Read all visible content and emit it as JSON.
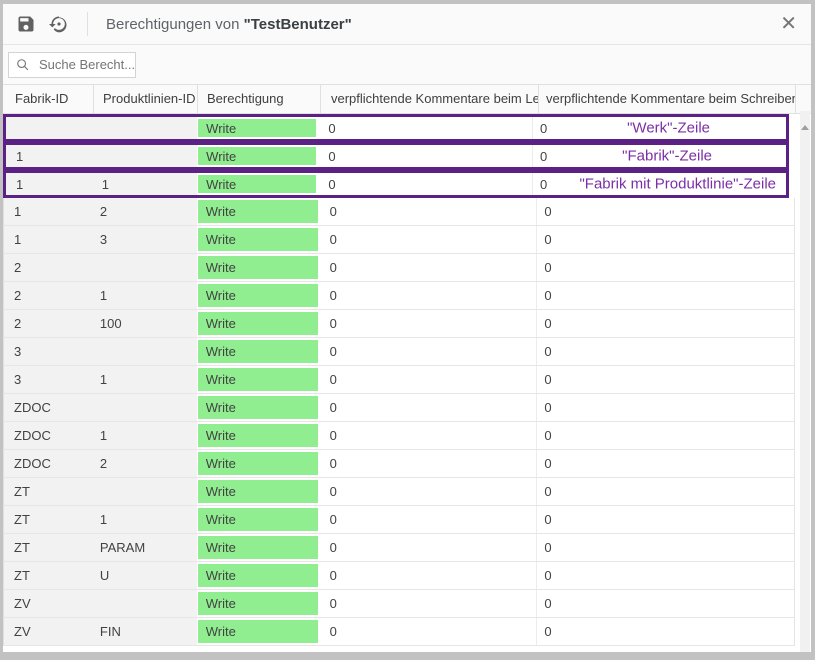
{
  "titlebar": {
    "title_prefix": "Berechtigungen von ",
    "title_user": "\"TestBenutzer\"",
    "close_label": "✕",
    "icons": [
      "save-icon",
      "history-restore-icon",
      "close-icon"
    ]
  },
  "toolbar": {
    "search_placeholder": "Suche Berecht...",
    "search_value": "",
    "icons": [
      "search-icon"
    ]
  },
  "colors": {
    "permission_green": "#90ee90",
    "highlight_purple": "#5c2184",
    "annotation_purple": "#7b2fa6",
    "row_alt_gray": "#f2f2f2"
  },
  "table": {
    "columns": [
      "Fabrik-ID",
      "Produktlinien-ID",
      "Berechtigung",
      "verpflichtende Kommentare beim Lesen",
      "verpflichtende Kommentare beim Schreiben"
    ],
    "rows": [
      {
        "fabrik_id": "",
        "produktlinien_id": "",
        "berechtigung": "Write",
        "kommentare_lesen": "0",
        "kommentare_schreiben": "0",
        "highlighted": true,
        "annotation": "\"Werk\"-Zeile"
      },
      {
        "fabrik_id": "1",
        "produktlinien_id": "",
        "berechtigung": "Write",
        "kommentare_lesen": "0",
        "kommentare_schreiben": "0",
        "highlighted": true,
        "annotation": "\"Fabrik\"-Zeile"
      },
      {
        "fabrik_id": "1",
        "produktlinien_id": "1",
        "berechtigung": "Write",
        "kommentare_lesen": "0",
        "kommentare_schreiben": "0",
        "highlighted": true,
        "annotation": "\"Fabrik mit Produktlinie\"-Zeile"
      },
      {
        "fabrik_id": "1",
        "produktlinien_id": "2",
        "berechtigung": "Write",
        "kommentare_lesen": "0",
        "kommentare_schreiben": "0",
        "highlighted": false,
        "annotation": ""
      },
      {
        "fabrik_id": "1",
        "produktlinien_id": "3",
        "berechtigung": "Write",
        "kommentare_lesen": "0",
        "kommentare_schreiben": "0",
        "highlighted": false,
        "annotation": ""
      },
      {
        "fabrik_id": "2",
        "produktlinien_id": "",
        "berechtigung": "Write",
        "kommentare_lesen": "0",
        "kommentare_schreiben": "0",
        "highlighted": false,
        "annotation": ""
      },
      {
        "fabrik_id": "2",
        "produktlinien_id": "1",
        "berechtigung": "Write",
        "kommentare_lesen": "0",
        "kommentare_schreiben": "0",
        "highlighted": false,
        "annotation": ""
      },
      {
        "fabrik_id": "2",
        "produktlinien_id": "100",
        "berechtigung": "Write",
        "kommentare_lesen": "0",
        "kommentare_schreiben": "0",
        "highlighted": false,
        "annotation": ""
      },
      {
        "fabrik_id": "3",
        "produktlinien_id": "",
        "berechtigung": "Write",
        "kommentare_lesen": "0",
        "kommentare_schreiben": "0",
        "highlighted": false,
        "annotation": ""
      },
      {
        "fabrik_id": "3",
        "produktlinien_id": "1",
        "berechtigung": "Write",
        "kommentare_lesen": "0",
        "kommentare_schreiben": "0",
        "highlighted": false,
        "annotation": ""
      },
      {
        "fabrik_id": "ZDOC",
        "produktlinien_id": "",
        "berechtigung": "Write",
        "kommentare_lesen": "0",
        "kommentare_schreiben": "0",
        "highlighted": false,
        "annotation": ""
      },
      {
        "fabrik_id": "ZDOC",
        "produktlinien_id": "1",
        "berechtigung": "Write",
        "kommentare_lesen": "0",
        "kommentare_schreiben": "0",
        "highlighted": false,
        "annotation": ""
      },
      {
        "fabrik_id": "ZDOC",
        "produktlinien_id": "2",
        "berechtigung": "Write",
        "kommentare_lesen": "0",
        "kommentare_schreiben": "0",
        "highlighted": false,
        "annotation": ""
      },
      {
        "fabrik_id": "ZT",
        "produktlinien_id": "",
        "berechtigung": "Write",
        "kommentare_lesen": "0",
        "kommentare_schreiben": "0",
        "highlighted": false,
        "annotation": ""
      },
      {
        "fabrik_id": "ZT",
        "produktlinien_id": "1",
        "berechtigung": "Write",
        "kommentare_lesen": "0",
        "kommentare_schreiben": "0",
        "highlighted": false,
        "annotation": ""
      },
      {
        "fabrik_id": "ZT",
        "produktlinien_id": "PARAM",
        "berechtigung": "Write",
        "kommentare_lesen": "0",
        "kommentare_schreiben": "0",
        "highlighted": false,
        "annotation": ""
      },
      {
        "fabrik_id": "ZT",
        "produktlinien_id": "U",
        "berechtigung": "Write",
        "kommentare_lesen": "0",
        "kommentare_schreiben": "0",
        "highlighted": false,
        "annotation": ""
      },
      {
        "fabrik_id": "ZV",
        "produktlinien_id": "",
        "berechtigung": "Write",
        "kommentare_lesen": "0",
        "kommentare_schreiben": "0",
        "highlighted": false,
        "annotation": ""
      },
      {
        "fabrik_id": "ZV",
        "produktlinien_id": "FIN",
        "berechtigung": "Write",
        "kommentare_lesen": "0",
        "kommentare_schreiben": "0",
        "highlighted": false,
        "annotation": ""
      }
    ]
  }
}
